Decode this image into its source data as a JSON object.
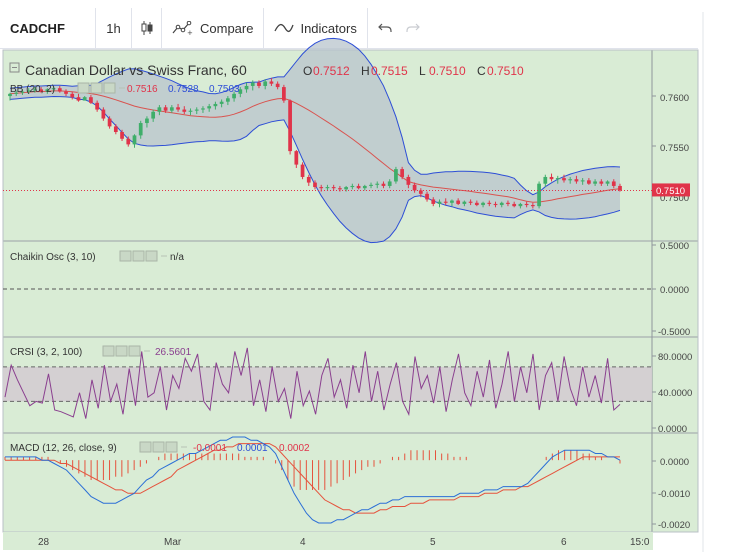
{
  "toolbar": {
    "symbol": "CADCHF",
    "interval": "1h",
    "compare_label": "Compare",
    "indicators_label": "Indicators"
  },
  "colors": {
    "up": "#3fae6a",
    "down": "#e0344a",
    "bb_band": "#2d4ed6",
    "bb_basis": "#d9534f",
    "crsi_line": "#8a3f8f",
    "macd_line": "#2c6fd6",
    "signal_line": "#e5533d",
    "price_label": "#e0344a",
    "panel_bg": "#d9ecd5"
  },
  "main": {
    "title": "Canadian Dollar vs Swiss Franc, 60",
    "ohlc": [
      {
        "key": "O",
        "value": "0.7512"
      },
      {
        "key": "H",
        "value": "0.7515"
      },
      {
        "key": "L",
        "value": "0.7510"
      },
      {
        "key": "C",
        "value": "0.7510"
      }
    ],
    "bb_label": "BB (20, 2)",
    "bb_values": [
      "0.7516",
      "0.7528",
      "0.7503"
    ],
    "price_axis": [
      "0.7600",
      "0.7550",
      "0.7500"
    ],
    "last_price": "0.7510"
  },
  "chaikin": {
    "label": "Chaikin Osc (3, 10)",
    "value": "n/a",
    "axis": [
      "0.5000",
      "0.0000",
      "-0.5000"
    ]
  },
  "crsi": {
    "label": "CRSI (3, 2, 100)",
    "value": "26.5601",
    "axis": [
      "80.0000",
      "40.0000",
      "0.0000"
    ]
  },
  "macd": {
    "label": "MACD (12, 26, close, 9)",
    "values": [
      "-0.0001",
      "0.0001",
      "0.0002"
    ],
    "axis": [
      "0.0000",
      "-0.0010",
      "-0.0020"
    ]
  },
  "time_axis": [
    "28",
    "Mar",
    "4",
    "5",
    "6",
    "15:0"
  ],
  "chart_data": [
    {
      "type": "candlestick",
      "title": "Canadian Dollar vs Swiss Franc, 60",
      "x_ticks": [
        "28",
        "Mar",
        "4",
        "5",
        "6"
      ],
      "ylim": [
        0.7465,
        0.7635
      ],
      "y_ticks": [
        0.76,
        0.755,
        0.75
      ],
      "last_close": 0.751,
      "ohlc_approx": [
        {
          "o": 0.7594,
          "h": 0.7597,
          "l": 0.759,
          "c": 0.7596
        },
        {
          "o": 0.7596,
          "h": 0.7599,
          "l": 0.7594,
          "c": 0.7597
        },
        {
          "o": 0.7597,
          "h": 0.76,
          "l": 0.7595,
          "c": 0.7598
        },
        {
          "o": 0.7598,
          "h": 0.7601,
          "l": 0.7596,
          "c": 0.7599
        },
        {
          "o": 0.7599,
          "h": 0.7602,
          "l": 0.7597,
          "c": 0.76
        },
        {
          "o": 0.76,
          "h": 0.7602,
          "l": 0.7597,
          "c": 0.7598
        },
        {
          "o": 0.7598,
          "h": 0.7601,
          "l": 0.7596,
          "c": 0.76
        },
        {
          "o": 0.76,
          "h": 0.7603,
          "l": 0.7598,
          "c": 0.7601
        },
        {
          "o": 0.7601,
          "h": 0.7603,
          "l": 0.7597,
          "c": 0.7598
        },
        {
          "o": 0.7598,
          "h": 0.76,
          "l": 0.7594,
          "c": 0.7596
        },
        {
          "o": 0.7596,
          "h": 0.7598,
          "l": 0.7591,
          "c": 0.7593
        },
        {
          "o": 0.7593,
          "h": 0.7596,
          "l": 0.7589,
          "c": 0.759
        },
        {
          "o": 0.759,
          "h": 0.7594,
          "l": 0.759,
          "c": 0.7593
        },
        {
          "o": 0.7593,
          "h": 0.7595,
          "l": 0.7587,
          "c": 0.7588
        },
        {
          "o": 0.7588,
          "h": 0.759,
          "l": 0.758,
          "c": 0.7582
        },
        {
          "o": 0.7582,
          "h": 0.7584,
          "l": 0.7572,
          "c": 0.7574
        },
        {
          "o": 0.7574,
          "h": 0.7576,
          "l": 0.7565,
          "c": 0.7567
        },
        {
          "o": 0.7567,
          "h": 0.7569,
          "l": 0.756,
          "c": 0.7562
        },
        {
          "o": 0.7562,
          "h": 0.7564,
          "l": 0.7554,
          "c": 0.7556
        },
        {
          "o": 0.7556,
          "h": 0.7558,
          "l": 0.7549,
          "c": 0.7551
        },
        {
          "o": 0.7551,
          "h": 0.756,
          "l": 0.7548,
          "c": 0.7559
        },
        {
          "o": 0.7559,
          "h": 0.7572,
          "l": 0.7556,
          "c": 0.757
        },
        {
          "o": 0.757,
          "h": 0.7576,
          "l": 0.7566,
          "c": 0.7574
        },
        {
          "o": 0.7574,
          "h": 0.7582,
          "l": 0.7571,
          "c": 0.758
        },
        {
          "o": 0.758,
          "h": 0.7586,
          "l": 0.7577,
          "c": 0.7584
        },
        {
          "o": 0.7584,
          "h": 0.7586,
          "l": 0.7579,
          "c": 0.7581
        },
        {
          "o": 0.7581,
          "h": 0.7586,
          "l": 0.7579,
          "c": 0.7584
        },
        {
          "o": 0.7584,
          "h": 0.7587,
          "l": 0.758,
          "c": 0.7582
        },
        {
          "o": 0.7582,
          "h": 0.7585,
          "l": 0.7578,
          "c": 0.758
        },
        {
          "o": 0.758,
          "h": 0.7583,
          "l": 0.7577,
          "c": 0.7581
        },
        {
          "o": 0.7581,
          "h": 0.7584,
          "l": 0.7578,
          "c": 0.7582
        },
        {
          "o": 0.7582,
          "h": 0.7585,
          "l": 0.7579,
          "c": 0.7583
        },
        {
          "o": 0.7583,
          "h": 0.7587,
          "l": 0.758,
          "c": 0.7585
        },
        {
          "o": 0.7585,
          "h": 0.7589,
          "l": 0.7582,
          "c": 0.7587
        },
        {
          "o": 0.7587,
          "h": 0.7591,
          "l": 0.7584,
          "c": 0.7589
        },
        {
          "o": 0.7589,
          "h": 0.7594,
          "l": 0.7586,
          "c": 0.7592
        },
        {
          "o": 0.7592,
          "h": 0.7598,
          "l": 0.7589,
          "c": 0.7596
        },
        {
          "o": 0.7596,
          "h": 0.7602,
          "l": 0.7593,
          "c": 0.76
        },
        {
          "o": 0.76,
          "h": 0.7606,
          "l": 0.7597,
          "c": 0.7603
        },
        {
          "o": 0.7603,
          "h": 0.7608,
          "l": 0.7599,
          "c": 0.7606
        },
        {
          "o": 0.7606,
          "h": 0.7608,
          "l": 0.7601,
          "c": 0.7603
        },
        {
          "o": 0.7603,
          "h": 0.7609,
          "l": 0.76,
          "c": 0.7607
        },
        {
          "o": 0.7607,
          "h": 0.761,
          "l": 0.7603,
          "c": 0.7605
        },
        {
          "o": 0.7605,
          "h": 0.7607,
          "l": 0.76,
          "c": 0.7602
        },
        {
          "o": 0.7602,
          "h": 0.7604,
          "l": 0.7588,
          "c": 0.759
        },
        {
          "o": 0.759,
          "h": 0.7591,
          "l": 0.7542,
          "c": 0.7545
        },
        {
          "o": 0.7545,
          "h": 0.7546,
          "l": 0.753,
          "c": 0.7533
        },
        {
          "o": 0.7533,
          "h": 0.7535,
          "l": 0.752,
          "c": 0.7522
        },
        {
          "o": 0.7522,
          "h": 0.7524,
          "l": 0.7514,
          "c": 0.7517
        },
        {
          "o": 0.7517,
          "h": 0.7519,
          "l": 0.7511,
          "c": 0.7513
        },
        {
          "o": 0.7513,
          "h": 0.7515,
          "l": 0.7509,
          "c": 0.7512
        },
        {
          "o": 0.7512,
          "h": 0.7515,
          "l": 0.751,
          "c": 0.7513
        },
        {
          "o": 0.7513,
          "h": 0.7515,
          "l": 0.751,
          "c": 0.7512
        },
        {
          "o": 0.7512,
          "h": 0.7514,
          "l": 0.7509,
          "c": 0.7511
        },
        {
          "o": 0.7511,
          "h": 0.7514,
          "l": 0.7509,
          "c": 0.7513
        },
        {
          "o": 0.7513,
          "h": 0.7516,
          "l": 0.7511,
          "c": 0.7514
        },
        {
          "o": 0.7514,
          "h": 0.7516,
          "l": 0.7511,
          "c": 0.7512
        },
        {
          "o": 0.7512,
          "h": 0.7515,
          "l": 0.751,
          "c": 0.7514
        },
        {
          "o": 0.7514,
          "h": 0.7517,
          "l": 0.7512,
          "c": 0.7515
        },
        {
          "o": 0.7515,
          "h": 0.7518,
          "l": 0.7512,
          "c": 0.7516
        },
        {
          "o": 0.7516,
          "h": 0.7518,
          "l": 0.7512,
          "c": 0.7514
        },
        {
          "o": 0.7514,
          "h": 0.752,
          "l": 0.7512,
          "c": 0.7518
        },
        {
          "o": 0.7518,
          "h": 0.7531,
          "l": 0.7516,
          "c": 0.7529
        },
        {
          "o": 0.7529,
          "h": 0.7531,
          "l": 0.752,
          "c": 0.7522
        },
        {
          "o": 0.7522,
          "h": 0.7524,
          "l": 0.7512,
          "c": 0.7515
        },
        {
          "o": 0.7515,
          "h": 0.7517,
          "l": 0.7508,
          "c": 0.751
        },
        {
          "o": 0.751,
          "h": 0.7512,
          "l": 0.7504,
          "c": 0.7507
        },
        {
          "o": 0.7507,
          "h": 0.7509,
          "l": 0.75,
          "c": 0.7502
        },
        {
          "o": 0.7502,
          "h": 0.7504,
          "l": 0.7496,
          "c": 0.7498
        },
        {
          "o": 0.7498,
          "h": 0.7502,
          "l": 0.7495,
          "c": 0.75
        },
        {
          "o": 0.75,
          "h": 0.7503,
          "l": 0.7497,
          "c": 0.7499
        },
        {
          "o": 0.7499,
          "h": 0.7502,
          "l": 0.7496,
          "c": 0.7501
        },
        {
          "o": 0.7501,
          "h": 0.7503,
          "l": 0.7497,
          "c": 0.7498
        },
        {
          "o": 0.7498,
          "h": 0.7501,
          "l": 0.7496,
          "c": 0.75
        },
        {
          "o": 0.75,
          "h": 0.7502,
          "l": 0.7497,
          "c": 0.7499
        },
        {
          "o": 0.7499,
          "h": 0.7501,
          "l": 0.7496,
          "c": 0.7497
        },
        {
          "o": 0.7497,
          "h": 0.75,
          "l": 0.7495,
          "c": 0.7499
        },
        {
          "o": 0.7499,
          "h": 0.7501,
          "l": 0.7496,
          "c": 0.7498
        },
        {
          "o": 0.7498,
          "h": 0.75,
          "l": 0.7495,
          "c": 0.7497
        },
        {
          "o": 0.7497,
          "h": 0.75,
          "l": 0.7495,
          "c": 0.7499
        },
        {
          "o": 0.7499,
          "h": 0.7501,
          "l": 0.7496,
          "c": 0.7498
        },
        {
          "o": 0.7498,
          "h": 0.75,
          "l": 0.7495,
          "c": 0.7496
        },
        {
          "o": 0.7496,
          "h": 0.7499,
          "l": 0.7494,
          "c": 0.7498
        },
        {
          "o": 0.7498,
          "h": 0.75,
          "l": 0.7495,
          "c": 0.7497
        },
        {
          "o": 0.7497,
          "h": 0.7499,
          "l": 0.7494,
          "c": 0.7496
        },
        {
          "o": 0.7496,
          "h": 0.7518,
          "l": 0.7494,
          "c": 0.7516
        },
        {
          "o": 0.7516,
          "h": 0.7524,
          "l": 0.7513,
          "c": 0.7522
        },
        {
          "o": 0.7522,
          "h": 0.7525,
          "l": 0.7518,
          "c": 0.752
        },
        {
          "o": 0.752,
          "h": 0.7523,
          "l": 0.7516,
          "c": 0.7521
        },
        {
          "o": 0.7521,
          "h": 0.7524,
          "l": 0.7517,
          "c": 0.7519
        },
        {
          "o": 0.7519,
          "h": 0.7522,
          "l": 0.7516,
          "c": 0.752
        },
        {
          "o": 0.752,
          "h": 0.7523,
          "l": 0.7516,
          "c": 0.7518
        },
        {
          "o": 0.7518,
          "h": 0.7521,
          "l": 0.7515,
          "c": 0.7519
        },
        {
          "o": 0.7519,
          "h": 0.7521,
          "l": 0.7515,
          "c": 0.7516
        },
        {
          "o": 0.7516,
          "h": 0.752,
          "l": 0.7514,
          "c": 0.7518
        },
        {
          "o": 0.7518,
          "h": 0.752,
          "l": 0.7514,
          "c": 0.7516
        },
        {
          "o": 0.7516,
          "h": 0.7519,
          "l": 0.7514,
          "c": 0.7518
        },
        {
          "o": 0.7518,
          "h": 0.752,
          "l": 0.7512,
          "c": 0.7514
        },
        {
          "o": 0.7514,
          "h": 0.7516,
          "l": 0.7509,
          "c": 0.751
        }
      ]
    },
    {
      "type": "line",
      "title": "Chaikin Osc (3, 10)",
      "ylim": [
        -0.55,
        0.55
      ],
      "y_ticks": [
        0.5,
        0.0,
        -0.5
      ],
      "values": []
    },
    {
      "type": "line",
      "title": "CRSI (3, 2, 100)",
      "ylim": [
        -2,
        100
      ],
      "y_ticks": [
        80,
        40,
        0
      ],
      "band": [
        30,
        70
      ],
      "last_value": 26.5601,
      "values": [
        35,
        72,
        55,
        40,
        25,
        30,
        28,
        62,
        20,
        18,
        15,
        12,
        40,
        10,
        55,
        22,
        72,
        30,
        50,
        15,
        68,
        25,
        88,
        35,
        40,
        70,
        20,
        60,
        45,
        80,
        65,
        85,
        30,
        20,
        75,
        50,
        40,
        88,
        60,
        92,
        25,
        55,
        18,
        70,
        30,
        45,
        10,
        65,
        25,
        42,
        15,
        60,
        80,
        35,
        55,
        22,
        72,
        40,
        88,
        30,
        65,
        20,
        50,
        75,
        30,
        15,
        82,
        45,
        60,
        28,
        70,
        18,
        55,
        85,
        40,
        25,
        65,
        35,
        78,
        22,
        50,
        88,
        30,
        70,
        40,
        85,
        20,
        60,
        75,
        30,
        82,
        45,
        25,
        70,
        35,
        60,
        28,
        80,
        20,
        26.5601
      ]
    },
    {
      "type": "line",
      "title": "MACD (12, 26, close, 9)",
      "ylim": [
        -0.00205,
        0.0007
      ],
      "y_ticks": [
        0.0,
        -0.001,
        -0.002
      ],
      "series_labels": [
        "-0.0001",
        "0.0001",
        "0.0002"
      ],
      "histogram": [
        0.0001,
        0.0001,
        0.0001,
        0.0001,
        0.0001,
        0.0001,
        0.0001,
        0.0001,
        0.0,
        -0.0001,
        -0.0002,
        -0.0003,
        -0.0004,
        -0.0005,
        -0.0006,
        -0.0006,
        -0.0006,
        -0.0006,
        -0.0005,
        -0.0005,
        -0.0004,
        -0.0003,
        -0.0002,
        -0.0001,
        0.0,
        0.0001,
        0.0002,
        0.0002,
        0.0002,
        0.0002,
        0.0002,
        0.0002,
        0.0002,
        0.0002,
        0.0002,
        0.0002,
        0.0002,
        0.0002,
        0.0002,
        0.0001,
        0.0001,
        0.0001,
        0.0001,
        0.0,
        -0.0001,
        -0.0003,
        -0.0006,
        -0.0008,
        -0.0009,
        -0.0009,
        -0.0009,
        -0.0009,
        -0.0009,
        -0.0008,
        -0.0007,
        -0.0006,
        -0.0005,
        -0.0004,
        -0.0003,
        -0.0002,
        -0.0002,
        -0.0001,
        0.0,
        0.0001,
        0.0001,
        0.0002,
        0.0003,
        0.0003,
        0.0003,
        0.0003,
        0.0003,
        0.0002,
        0.0002,
        0.0001,
        0.0001,
        0.0001,
        0.0,
        0.0,
        0.0,
        0.0,
        0.0,
        0.0,
        0.0,
        0.0,
        0.0,
        0.0,
        0.0,
        0.0,
        0.0001,
        0.0002,
        0.0003,
        0.0003,
        0.0003,
        0.0003,
        0.0002,
        0.0002,
        0.0001,
        0.0001,
        0.0,
        0.0,
        -0.0001
      ],
      "macd": [
        0.0001,
        0.0001,
        0.0001,
        0.0001,
        0.0001,
        0.0001,
        0.0,
        0.0,
        -0.0001,
        -0.0002,
        -0.0003,
        -0.0005,
        -0.0007,
        -0.0009,
        -0.0011,
        -0.0012,
        -0.0013,
        -0.0013,
        -0.0013,
        -0.0012,
        -0.0011,
        -0.001,
        -0.0008,
        -0.0006,
        -0.0005,
        -0.0003,
        -0.0002,
        -0.0001,
        0.0,
        0.0001,
        0.0002,
        0.0002,
        0.0003,
        0.0004,
        0.0005,
        0.0006,
        0.0006,
        0.0007,
        0.0007,
        0.0007,
        0.0006,
        0.0006,
        0.0005,
        0.0004,
        0.0002,
        -0.0002,
        -0.0006,
        -0.001,
        -0.0013,
        -0.0016,
        -0.0018,
        -0.0019,
        -0.0019,
        -0.0019,
        -0.0018,
        -0.0018,
        -0.0017,
        -0.0016,
        -0.0015,
        -0.0015,
        -0.0014,
        -0.0013,
        -0.0013,
        -0.0012,
        -0.0012,
        -0.0011,
        -0.0011,
        -0.0011,
        -0.0011,
        -0.0011,
        -0.0011,
        -0.0011,
        -0.0011,
        -0.0011,
        -0.001,
        -0.001,
        -0.001,
        -0.001,
        -0.0009,
        -0.0009,
        -0.0009,
        -0.0008,
        -0.0008,
        -0.0008,
        -0.0008,
        -0.0007,
        -0.0005,
        -0.0003,
        -0.0001,
        0.0001,
        0.0002,
        0.0003,
        0.0003,
        0.0003,
        0.0003,
        0.0003,
        0.0002,
        0.0002,
        0.0001,
        0.0001,
        0.0
      ],
      "signal": [
        0.0,
        0.0,
        0.0,
        0.0,
        0.0,
        0.0,
        0.0,
        0.0,
        0.0,
        -0.0001,
        -0.0001,
        -0.0002,
        -0.0003,
        -0.0004,
        -0.0005,
        -0.0006,
        -0.0007,
        -0.0008,
        -0.0009,
        -0.0009,
        -0.001,
        -0.001,
        -0.001,
        -0.0009,
        -0.0008,
        -0.0007,
        -0.0006,
        -0.0005,
        -0.0003,
        -0.0002,
        -0.0001,
        0.0,
        0.0001,
        0.0002,
        0.0003,
        0.0003,
        0.0004,
        0.0004,
        0.0005,
        0.0005,
        0.0005,
        0.0005,
        0.0005,
        0.0005,
        0.0004,
        0.0002,
        0.0,
        -0.0002,
        -0.0004,
        -0.0006,
        -0.0008,
        -0.001,
        -0.0012,
        -0.0013,
        -0.0014,
        -0.0015,
        -0.0015,
        -0.0016,
        -0.0016,
        -0.0016,
        -0.0016,
        -0.0015,
        -0.0015,
        -0.0014,
        -0.0014,
        -0.0014,
        -0.0013,
        -0.0013,
        -0.0013,
        -0.0012,
        -0.0012,
        -0.0012,
        -0.0012,
        -0.0012,
        -0.0011,
        -0.0011,
        -0.0011,
        -0.0011,
        -0.001,
        -0.001,
        -0.001,
        -0.0009,
        -0.0009,
        -0.0009,
        -0.0008,
        -0.0008,
        -0.0007,
        -0.0006,
        -0.0005,
        -0.0004,
        -0.0003,
        -0.0002,
        -0.0001,
        0.0,
        0.0001,
        0.0001,
        0.0001,
        0.0001,
        0.0001,
        0.0001,
        0.0001
      ]
    }
  ]
}
